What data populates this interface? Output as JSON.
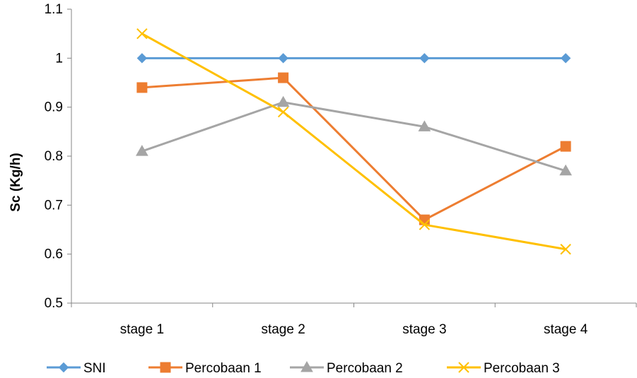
{
  "chart_data": {
    "type": "line",
    "title": "",
    "xlabel": "",
    "ylabel": "Sc (Kg/h)",
    "categories": [
      "stage 1",
      "stage 2",
      "stage 3",
      "stage 4"
    ],
    "y_ticks": [
      "0.5",
      "0.6",
      "0.7",
      "0.8",
      "0.9",
      "1",
      "1.1"
    ],
    "ylim": [
      0.5,
      1.1
    ],
    "grid": false,
    "legend_position": "bottom",
    "series": [
      {
        "name": "SNI",
        "values": [
          1.0,
          1.0,
          1.0,
          1.0
        ],
        "color": "#5B9BD5",
        "marker": "diamond"
      },
      {
        "name": "Percobaan 1",
        "values": [
          0.94,
          0.96,
          0.67,
          0.82
        ],
        "color": "#ED7D31",
        "marker": "square"
      },
      {
        "name": "Percobaan 2",
        "values": [
          0.81,
          0.91,
          0.86,
          0.77
        ],
        "color": "#A5A5A5",
        "marker": "triangle"
      },
      {
        "name": "Percobaan 3",
        "values": [
          1.05,
          0.89,
          0.66,
          0.61
        ],
        "color": "#FFC000",
        "marker": "x"
      }
    ]
  }
}
